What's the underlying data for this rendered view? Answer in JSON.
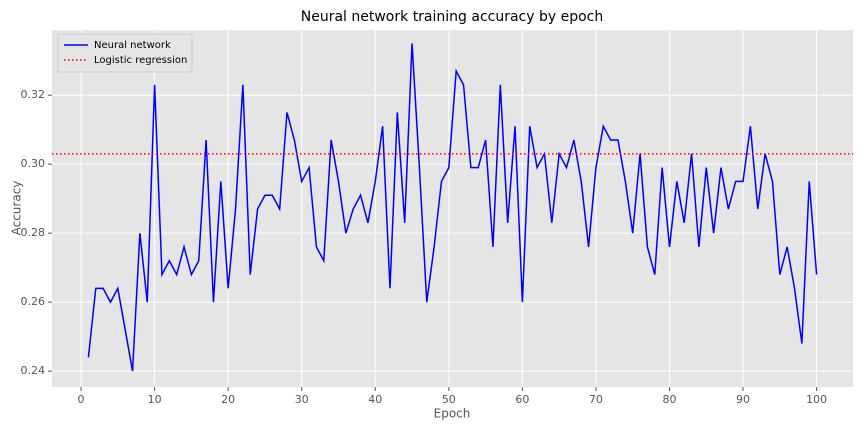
{
  "chart_data": {
    "type": "line",
    "title": "Neural network training accuracy by epoch",
    "x_label": "Epoch",
    "y_label": "Accuracy",
    "x": [
      1,
      2,
      3,
      4,
      5,
      6,
      7,
      8,
      9,
      10,
      11,
      12,
      13,
      14,
      15,
      16,
      17,
      18,
      19,
      20,
      21,
      22,
      23,
      24,
      25,
      26,
      27,
      28,
      29,
      30,
      31,
      32,
      33,
      34,
      35,
      36,
      37,
      38,
      39,
      40,
      41,
      42,
      43,
      44,
      45,
      46,
      47,
      48,
      49,
      50,
      51,
      52,
      53,
      54,
      55,
      56,
      57,
      58,
      59,
      60,
      61,
      62,
      63,
      64,
      65,
      66,
      67,
      68,
      69,
      70,
      71,
      72,
      73,
      74,
      75,
      76,
      77,
      78,
      79,
      80,
      81,
      82,
      83,
      84,
      85,
      86,
      87,
      88,
      89,
      90,
      91,
      92,
      93,
      94,
      95,
      96,
      97,
      98,
      99,
      100
    ],
    "series": [
      {
        "name": "Neural network",
        "color": "#0000ff",
        "values": [
          0.244,
          0.264,
          0.264,
          0.26,
          0.264,
          0.252,
          0.24,
          0.28,
          0.26,
          0.323,
          0.268,
          0.272,
          0.268,
          0.276,
          0.268,
          0.272,
          0.307,
          0.26,
          0.295,
          0.264,
          0.287,
          0.323,
          0.268,
          0.287,
          0.291,
          0.291,
          0.287,
          0.315,
          0.307,
          0.295,
          0.299,
          0.276,
          0.272,
          0.307,
          0.295,
          0.28,
          0.287,
          0.291,
          0.283,
          0.295,
          0.311,
          0.264,
          0.315,
          0.283,
          0.335,
          0.299,
          0.26,
          0.276,
          0.295,
          0.299,
          0.327,
          0.323,
          0.299,
          0.299,
          0.307,
          0.276,
          0.323,
          0.283,
          0.311,
          0.26,
          0.311,
          0.299,
          0.303,
          0.283,
          0.303,
          0.299,
          0.307,
          0.295,
          0.276,
          0.299,
          0.311,
          0.307,
          0.307,
          0.295,
          0.28,
          0.303,
          0.276,
          0.268,
          0.299,
          0.276,
          0.295,
          0.283,
          0.303,
          0.276,
          0.299,
          0.28,
          0.299,
          0.287,
          0.295,
          0.295,
          0.311,
          0.287,
          0.303,
          0.295,
          0.268,
          0.276,
          0.264,
          0.248,
          0.295,
          0.268
        ]
      }
    ],
    "reference_lines": [
      {
        "name": "Logistic regression",
        "color": "#ff0000",
        "value": 0.303,
        "style": "dotted"
      }
    ],
    "xlim": [
      -3.95,
      104.95
    ],
    "xticks": [
      0,
      10,
      20,
      30,
      40,
      50,
      60,
      70,
      80,
      90,
      100
    ],
    "ylim": [
      0.2354,
      0.3389
    ],
    "yticks": [
      0.24,
      0.26,
      0.28,
      {
        "value": 0.3,
        "label": "0.30"
      },
      0.32
    ],
    "grid": true,
    "legend": "upper left"
  }
}
